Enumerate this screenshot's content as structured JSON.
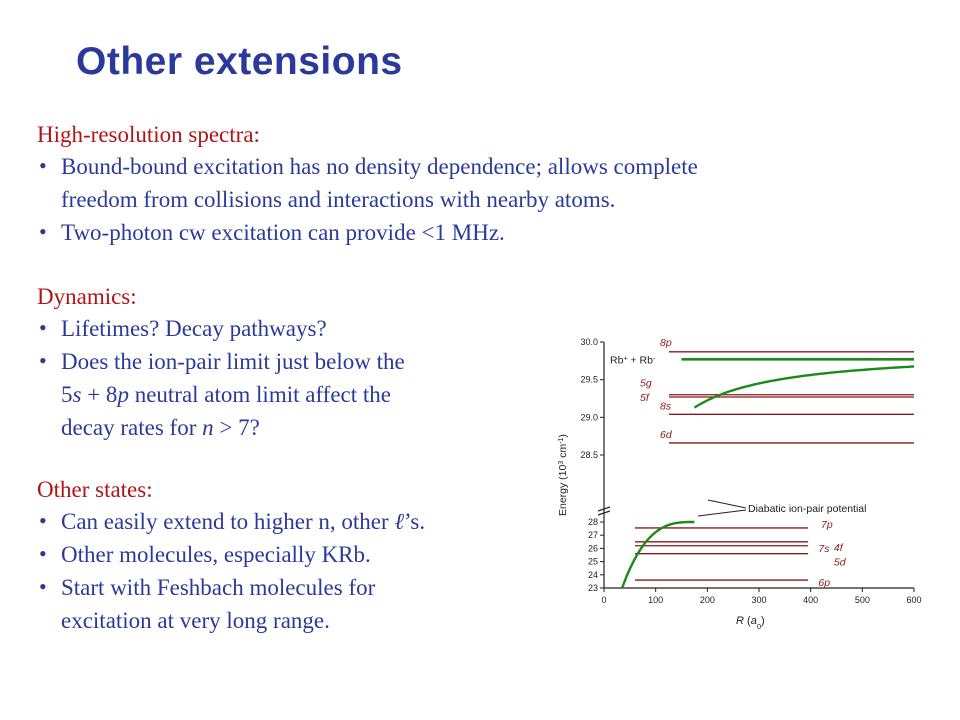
{
  "title": "Other extensions",
  "sections": [
    {
      "heading": "High-resolution spectra:",
      "bullets": [
        [
          "Bound-bound excitation has no density dependence; allows complete",
          "freedom from collisions and interactions with nearby atoms."
        ],
        [
          "Two-photon cw excitation can provide <1 MHz."
        ]
      ]
    },
    {
      "heading": "Dynamics:",
      "bullets": [
        [
          "Lifetimes?  Decay pathways?"
        ],
        [
          "Does the ion-pair limit just below the"
        ],
        [
          "decay rates for "
        ]
      ],
      "line2_a": "5",
      "line2_s": "s",
      "line2_b": " + 8",
      "line2_p": "p",
      "line2_c": " neutral atom limit affect the",
      "line3_n": "n",
      "line3_end": " > 7?"
    },
    {
      "heading": "Other states:",
      "bullets": [
        [
          "Can easily extend to higher n, other "
        ],
        [
          "Other molecules, especially KRb."
        ],
        [
          "Start with Feshbach molecules for",
          "excitation at very long range."
        ]
      ],
      "ell": "ℓ",
      "ell_suffix": "’s."
    }
  ],
  "chart_data": {
    "type": "line",
    "xlabel_main": "R",
    "xlabel_unit": "a",
    "xlabel_sub": "0",
    "ylabel": "Energy (10",
    "ylabel_exp": "3",
    "ylabel_unit": " cm",
    "ylabel_exp2": "-1",
    "ylabel_close": ")",
    "xlim": [
      0,
      600
    ],
    "xticks": [
      "0",
      "100",
      "200",
      "300",
      "400",
      "500",
      "600"
    ],
    "upper_axis": {
      "ylim": [
        28.5,
        30.0
      ],
      "ticks": [
        "28.5",
        "29.0",
        "29.5",
        "30.0"
      ]
    },
    "lower_axis": {
      "ylim": [
        23,
        28
      ],
      "ticks": [
        "23",
        "24",
        "25",
        "26",
        "27",
        "28"
      ]
    },
    "levels_upper": [
      {
        "label": "8p",
        "energy": 29.87
      },
      {
        "label": "5g",
        "energy": 29.3
      },
      {
        "label": "5f",
        "energy": 29.27
      },
      {
        "label": "8s",
        "energy": 29.04
      },
      {
        "label": "6d",
        "energy": 28.66
      }
    ],
    "levels_lower": [
      {
        "label": "7p",
        "energy": 27.55
      },
      {
        "label": "4f",
        "energy": 26.5
      },
      {
        "label": "7s",
        "energy": 26.2
      },
      {
        "label": "5d",
        "energy": 25.6
      },
      {
        "label": "6p",
        "energy": 23.6
      }
    ],
    "ion_pair_limit": {
      "label_a": "Rb",
      "label_sup1": "+",
      "label_b": " + Rb",
      "label_sup2": "-",
      "energy": 29.77,
      "color": "#1a8a1a"
    },
    "annotation": "Diabatic ion-pair potential",
    "level_color": "#8b1a1a",
    "curve_color": "#1a8a1a"
  }
}
